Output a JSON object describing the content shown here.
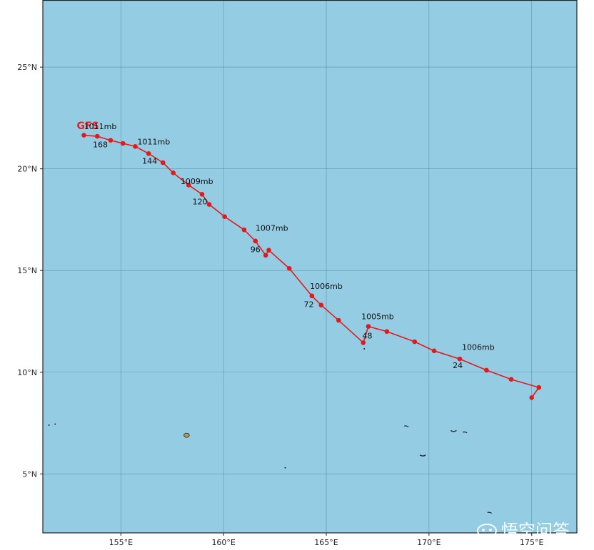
{
  "map": {
    "lon_range": [
      151.2,
      177.2
    ],
    "lat_range": [
      2.1,
      28.3
    ],
    "gridlines": true,
    "colors": {
      "ocean": "#94cde3",
      "grid": "#4f7f93",
      "track": "#e31a1c",
      "frame": "#222222",
      "model_label": "#ee1c1c"
    },
    "lon_ticks": [
      {
        "value": 155,
        "label": "155°E"
      },
      {
        "value": 160,
        "label": "160°E"
      },
      {
        "value": 165,
        "label": "165°E"
      },
      {
        "value": 170,
        "label": "170°E"
      },
      {
        "value": 175,
        "label": "175°E"
      }
    ],
    "lat_ticks": [
      {
        "value": 5,
        "label": "5°N"
      },
      {
        "value": 10,
        "label": "10°N"
      },
      {
        "value": 15,
        "label": "15°N"
      },
      {
        "value": 20,
        "label": "20°N"
      },
      {
        "value": 25,
        "label": "25°N"
      }
    ]
  },
  "model_label": "GFS",
  "track": [
    {
      "lon": 175.0,
      "lat": 8.75
    },
    {
      "lon": 175.35,
      "lat": 9.25
    },
    {
      "lon": 174.0,
      "lat": 9.65
    },
    {
      "lon": 172.8,
      "lat": 10.1
    },
    {
      "lon": 171.5,
      "lat": 10.65
    },
    {
      "lon": 170.25,
      "lat": 11.05
    },
    {
      "lon": 169.3,
      "lat": 11.5
    },
    {
      "lon": 167.95,
      "lat": 12.0
    },
    {
      "lon": 167.05,
      "lat": 12.25
    },
    {
      "lon": 166.8,
      "lat": 11.45
    },
    {
      "lon": 165.6,
      "lat": 12.55
    },
    {
      "lon": 164.75,
      "lat": 13.3
    },
    {
      "lon": 164.3,
      "lat": 13.75
    },
    {
      "lon": 163.2,
      "lat": 15.1
    },
    {
      "lon": 162.2,
      "lat": 16.0
    },
    {
      "lon": 162.05,
      "lat": 15.75
    },
    {
      "lon": 161.55,
      "lat": 16.45
    },
    {
      "lon": 161.0,
      "lat": 17.0
    },
    {
      "lon": 160.05,
      "lat": 17.65
    },
    {
      "lon": 159.3,
      "lat": 18.25
    },
    {
      "lon": 158.95,
      "lat": 18.75
    },
    {
      "lon": 158.3,
      "lat": 19.2
    },
    {
      "lon": 157.55,
      "lat": 19.8
    },
    {
      "lon": 157.05,
      "lat": 20.3
    },
    {
      "lon": 156.35,
      "lat": 20.75
    },
    {
      "lon": 155.7,
      "lat": 21.1
    },
    {
      "lon": 155.1,
      "lat": 21.25
    },
    {
      "lon": 154.5,
      "lat": 21.4
    },
    {
      "lon": 153.85,
      "lat": 21.6
    },
    {
      "lon": 153.2,
      "lat": 21.65
    }
  ],
  "pressure_labels": [
    {
      "text": "1006mb",
      "lon": 172.4,
      "lat": 11.1
    },
    {
      "text": "1005mb",
      "lon": 167.5,
      "lat": 12.6
    },
    {
      "text": "1006mb",
      "lon": 165.0,
      "lat": 14.1
    },
    {
      "text": "1007mb",
      "lon": 162.35,
      "lat": 16.95
    },
    {
      "text": "1009mb",
      "lon": 158.7,
      "lat": 19.25
    },
    {
      "text": "1011mb",
      "lon": 156.6,
      "lat": 21.2
    },
    {
      "text": "1011mb",
      "lon": 154.0,
      "lat": 21.95
    }
  ],
  "hour_labels": [
    {
      "text": "24",
      "lon": 171.4,
      "lat": 10.2
    },
    {
      "text": "48",
      "lon": 167.0,
      "lat": 11.65
    },
    {
      "text": "72",
      "lon": 164.15,
      "lat": 13.2
    },
    {
      "text": "96",
      "lon": 161.55,
      "lat": 15.9
    },
    {
      "text": "120",
      "lon": 158.85,
      "lat": 18.25
    },
    {
      "text": "144",
      "lon": 156.4,
      "lat": 20.25
    },
    {
      "text": "168",
      "lon": 154.0,
      "lat": 21.05
    }
  ],
  "islands": [
    {
      "lon": 158.2,
      "lat": 6.9,
      "shape": "blob"
    },
    {
      "lon": 151.5,
      "lat": 7.4,
      "shape": "dot"
    },
    {
      "lon": 151.8,
      "lat": 7.45,
      "shape": "dot"
    },
    {
      "lon": 163.0,
      "lat": 5.3,
      "shape": "dot"
    },
    {
      "lon": 166.85,
      "lat": 11.15,
      "shape": "dot"
    },
    {
      "lon": 168.9,
      "lat": 7.35,
      "shape": "dash"
    },
    {
      "lon": 169.7,
      "lat": 5.9,
      "shape": "arc"
    },
    {
      "lon": 171.2,
      "lat": 7.1,
      "shape": "arc"
    },
    {
      "lon": 171.75,
      "lat": 7.05,
      "shape": "dash"
    },
    {
      "lon": 172.95,
      "lat": 3.1,
      "shape": "dash"
    }
  ],
  "watermark": {
    "text": "悟空问答",
    "icon": "wukong-logo-icon"
  }
}
